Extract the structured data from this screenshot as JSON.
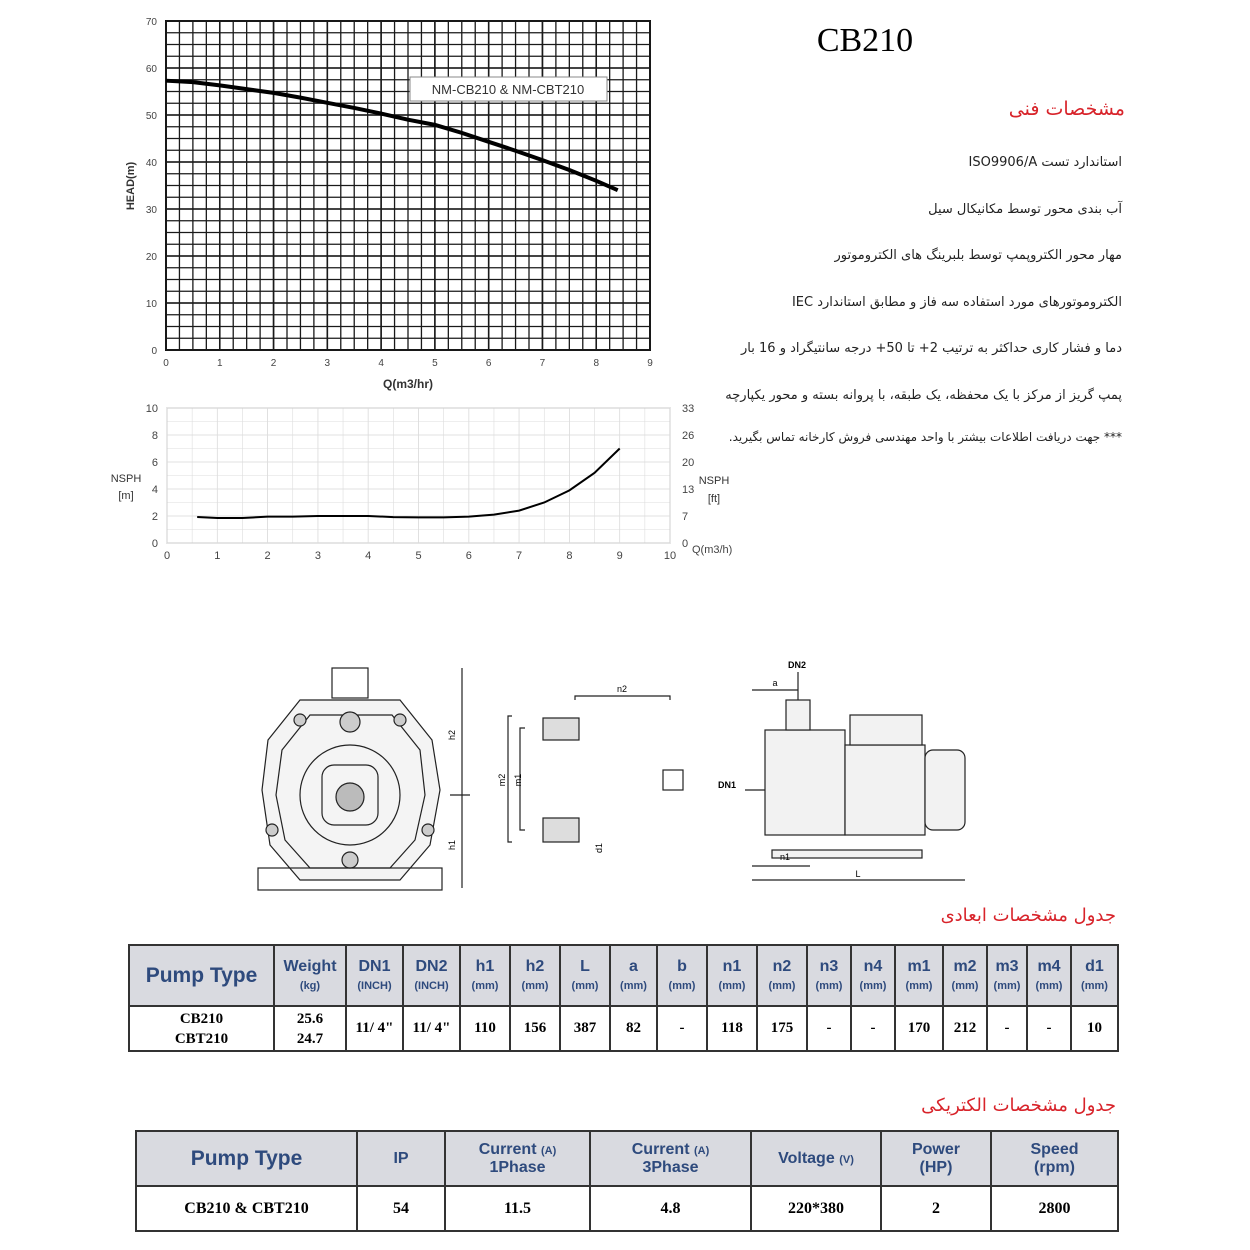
{
  "chart_data": [
    {
      "type": "line",
      "annotation": "NM-CB210 & NM-CBT210",
      "xlabel": "Q(m3/hr)",
      "ylabel": "HEAD(m)",
      "x": [
        0,
        0.5,
        1,
        1.5,
        2,
        2.5,
        3,
        3.5,
        4,
        4.5,
        5,
        5.5,
        6,
        6.5,
        7,
        7.5,
        8,
        8.4
      ],
      "series": [
        {
          "color": "#000000",
          "values": [
            57.3,
            57,
            56.3,
            55.5,
            54.7,
            53.7,
            52.6,
            51.5,
            50.3,
            49,
            47.9,
            46.2,
            44.3,
            42.4,
            40.4,
            38.3,
            36,
            34
          ]
        }
      ],
      "xlim": [
        0,
        9
      ],
      "xticks": [
        0,
        1,
        2,
        3,
        4,
        5,
        6,
        7,
        8,
        9
      ],
      "ylim": [
        0,
        70
      ],
      "yticks": [
        0,
        10,
        20,
        30,
        40,
        50,
        60,
        70
      ],
      "grid": true,
      "grid_color": "#1a1a1a",
      "minor_grid": {
        "x": 0.25,
        "y": 2.5
      }
    },
    {
      "type": "line",
      "xlabel": "Q(m3/h)",
      "ylabel": "NSPH",
      "ylabel_unit": "[m]",
      "y2label": "NSPH",
      "y2label_unit": "[ft]",
      "x": [
        0.6,
        1,
        1.5,
        2,
        2.5,
        3,
        3.5,
        4,
        4.5,
        5,
        5.5,
        6,
        6.5,
        7,
        7.5,
        8,
        8.5,
        9
      ],
      "series": [
        {
          "color": "#000000",
          "values": [
            1.93,
            1.85,
            1.85,
            1.95,
            1.95,
            2.0,
            2.0,
            2.0,
            1.92,
            1.9,
            1.9,
            1.95,
            2.1,
            2.4,
            3.0,
            3.9,
            5.2,
            7.0
          ]
        }
      ],
      "xlim": [
        0,
        10
      ],
      "xticks": [
        0,
        1,
        2,
        3,
        4,
        5,
        6,
        7,
        8,
        9,
        10
      ],
      "ylim": [
        0,
        10
      ],
      "yticks": [
        0,
        2,
        4,
        6,
        8,
        10
      ],
      "y2lim": [
        0,
        33
      ],
      "y2ticks": [
        0,
        {
          "value": 6.6,
          "label": "7"
        },
        {
          "value": 13.2,
          "label": "13"
        },
        {
          "value": 19.8,
          "label": "20"
        },
        {
          "value": 26.4,
          "label": "26"
        },
        33
      ],
      "grid": true,
      "grid_color": "#dddddd",
      "minor_grid": {
        "x": 0.5,
        "y": 1
      }
    }
  ],
  "title": "CB210",
  "specs": {
    "heading": "مشخصات فنی",
    "lines": [
      "استاندارد تست ISO9906/A",
      "آب بندی محور توسط مکانیکال سیل",
      "مهار محور الکتروپمپ توسط بلبرینگ های الکتروموتور",
      "الکتروموتورهای مورد استفاده سه فاز و مطابق استاندارد IEC",
      "دما و فشار کاری حداکثر به ترتیب 2+ تا 50+ درجه سانتیگراد و 16 بار",
      "پمپ گریز از مرکز با یک محفظه، یک طبقه، با پروانه بسته و محور یکپارچه",
      "*** جهت دریافت اطلاعات بیشتر با واحد مهندسی فروش کارخانه تماس بگیرید."
    ]
  },
  "drawing_labels": {
    "front": [
      "h2",
      "h1"
    ],
    "base": [
      "n2",
      "m2",
      "m1",
      "d1"
    ],
    "side": [
      "DN2",
      "a",
      "DN1",
      "n1",
      "L"
    ]
  },
  "dim_table": {
    "title": "جدول مشخصات ابعادی",
    "header": [
      {
        "name": "Pump Type"
      },
      {
        "name": "Weight",
        "unit": "(kg)"
      },
      {
        "name": "DN1",
        "unit": "(INCH)"
      },
      {
        "name": "DN2",
        "unit": "(INCH)"
      },
      {
        "name": "h1",
        "unit": "(mm)"
      },
      {
        "name": "h2",
        "unit": "(mm)"
      },
      {
        "name": "L",
        "unit": "(mm)"
      },
      {
        "name": "a",
        "unit": "(mm)"
      },
      {
        "name": "b",
        "unit": "(mm)"
      },
      {
        "name": "n1",
        "unit": "(mm)"
      },
      {
        "name": "n2",
        "unit": "(mm)"
      },
      {
        "name": "n3",
        "unit": "(mm)"
      },
      {
        "name": "n4",
        "unit": "(mm)"
      },
      {
        "name": "m1",
        "unit": "(mm)"
      },
      {
        "name": "m2",
        "unit": "(mm)"
      },
      {
        "name": "m3",
        "unit": "(mm)"
      },
      {
        "name": "m4",
        "unit": "(mm)"
      },
      {
        "name": "d1",
        "unit": "(mm)"
      }
    ],
    "rows": [
      [
        [
          "CB210",
          "CBT210"
        ],
        [
          "25.6",
          "24.7"
        ],
        "11/ 4\"",
        "11/ 4\"",
        110,
        156,
        387,
        82,
        "-",
        118,
        175,
        "-",
        "-",
        170,
        212,
        "-",
        "-",
        10
      ]
    ]
  },
  "elec_table": {
    "title": "جدول مشخصات الکتریکی",
    "header": [
      {
        "name": "Pump Type"
      },
      {
        "name": "IP"
      },
      {
        "name": "Current",
        "unit": "(A)",
        "sub": "1Phase"
      },
      {
        "name": "Current",
        "unit": "(A)",
        "sub": "3Phase"
      },
      {
        "name": "Voltage",
        "unit": "(V)"
      },
      {
        "name": "Power",
        "sub": "(HP)"
      },
      {
        "name": "Speed",
        "sub": "(rpm)"
      }
    ],
    "rows": [
      [
        "CB210 & CBT210",
        54,
        11.5,
        4.8,
        "220*380",
        2,
        2800
      ]
    ]
  }
}
